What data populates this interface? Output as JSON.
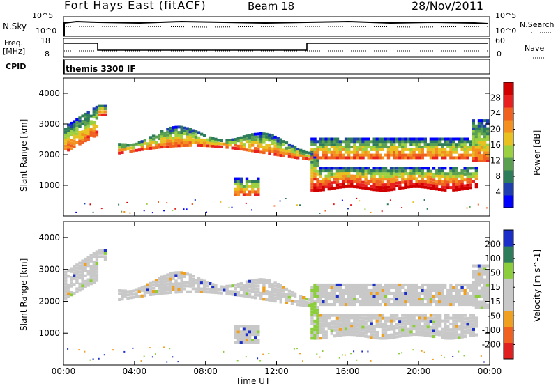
{
  "header": {
    "station": "Fort Hays East (fitACF)",
    "beam": "Beam 18",
    "date": "28/Nov/2011"
  },
  "top_panel": {
    "left_label": "N.Sky",
    "right_label": "N.Search",
    "ytick_left": [
      "10^5",
      "10^0"
    ],
    "ytick_right": [
      "10^5",
      "10^0"
    ]
  },
  "freq_panel": {
    "left_label_line1": "Freq.",
    "left_label_line2": "[MHz]",
    "ytick_left": [
      "18",
      "8"
    ],
    "right_label": "Nave",
    "ytick_right": [
      "60",
      "0"
    ],
    "cpid_label": "CPID",
    "cpid_text": "themis 3300 IF"
  },
  "colors": {
    "power_scale": [
      "#0000ff",
      "#1f3fb0",
      "#2e7d5a",
      "#5aa050",
      "#9bd040",
      "#e8c020",
      "#f39020",
      "#f06020",
      "#e82020",
      "#d00000"
    ],
    "velocity_scale": [
      "#1c2ec8",
      "#2e7d5a",
      "#8ccd3c",
      "#c8c8c8",
      "#c8c8c8",
      "#f0a020",
      "#f06020",
      "#e02020"
    ],
    "grey": "#c8c8c8"
  },
  "chart_data": [
    {
      "type": "heatmap",
      "title": "",
      "xlabel": "Time UT",
      "ylabel": "Slant Range [km]",
      "x_ticks": [
        "00:00",
        "04:00",
        "08:00",
        "12:00",
        "16:00",
        "20:00",
        "00:00"
      ],
      "y_ticks": [
        "1000",
        "2000",
        "3000",
        "4000"
      ],
      "ylim": [
        0,
        4500
      ],
      "colorbar": {
        "label": "Power [dB]",
        "ticks": [
          "4",
          "8",
          "12",
          "16",
          "20",
          "24",
          "28"
        ]
      }
    },
    {
      "type": "heatmap",
      "title": "",
      "xlabel": "Time UT",
      "ylabel": "Slant Range [km]",
      "x_ticks": [
        "00:00",
        "04:00",
        "08:00",
        "12:00",
        "16:00",
        "20:00",
        "00:00"
      ],
      "y_ticks": [
        "1000",
        "2000",
        "3000",
        "4000"
      ],
      "ylim": [
        0,
        4500
      ],
      "colorbar": {
        "label": "Velocity [m s^-1]",
        "ticks": [
          "200",
          "100",
          "50",
          "15",
          "-15",
          "-50",
          "-100",
          "-200"
        ]
      }
    }
  ]
}
